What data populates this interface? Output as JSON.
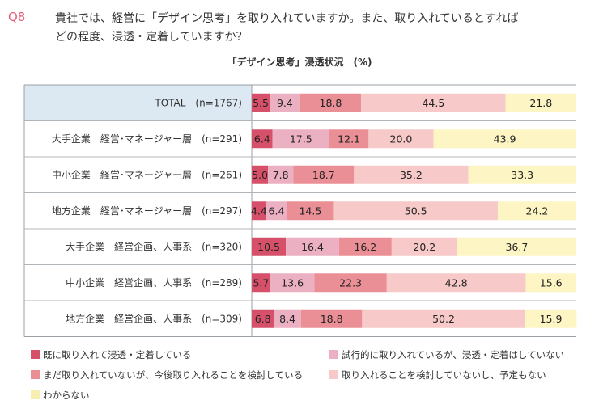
{
  "header": {
    "qno": "Q8",
    "line1": "貴社では、経営に「デザイン思考」を取り入れていますか。また、取り入れているとすれば",
    "line2": "どの程度、浸透・定着していますか？"
  },
  "chart_data": {
    "type": "bar",
    "orientation": "horizontal",
    "stacked": true,
    "title": "「デザイン思考」浸透状況　(%)",
    "xlim": [
      0,
      100
    ],
    "categories": [
      "TOTAL　(n=1767)",
      "大手企業　経営･マネージャー層　(n=291)",
      "中小企業　経営･マネージャー層　(n=261)",
      "地方企業　経営･マネージャー層　(n=297)",
      "大手企業　経営企画、人事系　(n=320)",
      "中小企業　経営企画、人事系　(n=289)",
      "地方企業　経営企画、人事系　(n=309)"
    ],
    "series": [
      {
        "name": "既に取り入れて浸透・定着している",
        "color": "#d6506a",
        "values": [
          5.5,
          6.4,
          5.0,
          4.4,
          10.5,
          5.7,
          6.8
        ],
        "labels": [
          "5.5",
          "6.4",
          "5.0",
          "4.4",
          "10.5",
          "5.7",
          "6.8"
        ]
      },
      {
        "name": "試行的に取り入れているが、浸透・定着はしていない",
        "color": "#ecb0c3",
        "values": [
          9.4,
          17.5,
          7.8,
          6.4,
          16.4,
          13.6,
          8.4
        ],
        "labels": [
          "9.4",
          "17.5",
          "7.8",
          "6.4",
          "16.4",
          "13.6",
          "8.4"
        ]
      },
      {
        "name": "まだ取り入れていないが、今後取り入れることを検討している",
        "color": "#ea8f95",
        "values": [
          18.8,
          12.1,
          18.7,
          14.5,
          16.2,
          22.3,
          18.8
        ],
        "labels": [
          "18.8",
          "12.1",
          "18.7",
          "14.5",
          "16.2",
          "22.3",
          "18.8"
        ]
      },
      {
        "name": "取り入れることを検討していないし、予定もない",
        "color": "#f7c9c9",
        "values": [
          44.5,
          20.0,
          35.2,
          50.5,
          20.2,
          42.8,
          50.2
        ],
        "labels": [
          "44.5",
          "20.0",
          "35.2",
          "50.5",
          "20.2",
          "42.8",
          "50.2"
        ]
      },
      {
        "name": "わからない",
        "color": "#fdf5c4",
        "values": [
          21.8,
          43.9,
          33.3,
          24.2,
          36.7,
          15.6,
          15.9
        ],
        "labels": [
          "21.8",
          "43.9",
          "33.3",
          "24.2",
          "36.7",
          "15.6",
          "15.9"
        ]
      }
    ],
    "legend": "bottom"
  }
}
